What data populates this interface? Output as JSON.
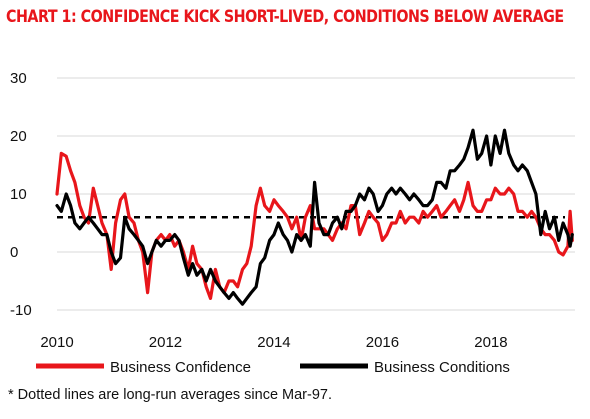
{
  "title": "CHART 1: CONFIDENCE KICK SHORT-LIVED, CONDITIONS BELOW AVERAGE",
  "footnote": "* Dotted lines are long-run averages since Mar-97.",
  "colors": {
    "title": "#e8161b",
    "confidence": "#e8161b",
    "conditions": "#000000",
    "grid": "#d9d9d9"
  },
  "chart_data": {
    "type": "line",
    "title": "CHART 1: CONFIDENCE KICK SHORT-LIVED, CONDITIONS BELOW AVERAGE",
    "xlabel": "",
    "ylabel": "",
    "xlim": [
      2010,
      2019.55
    ],
    "ylim": [
      -10,
      30
    ],
    "x_ticks": [
      "2010",
      "2012",
      "2014",
      "2016",
      "2018"
    ],
    "y_ticks": [
      "30",
      "20",
      "10",
      "0",
      "-10"
    ],
    "grid": true,
    "legend": "bottom",
    "reference_lines": [
      {
        "y": 6,
        "style": "dashed"
      }
    ],
    "series": [
      {
        "name": "Business Confidence",
        "color": "#e8161b",
        "points": [
          [
            2010.0,
            10
          ],
          [
            2010.08,
            17
          ],
          [
            2010.17,
            16.5
          ],
          [
            2010.25,
            14
          ],
          [
            2010.33,
            12
          ],
          [
            2010.42,
            8
          ],
          [
            2010.5,
            6
          ],
          [
            2010.58,
            5
          ],
          [
            2010.67,
            11
          ],
          [
            2010.75,
            8
          ],
          [
            2010.83,
            5
          ],
          [
            2010.92,
            3
          ],
          [
            2011.0,
            -3
          ],
          [
            2011.08,
            5
          ],
          [
            2011.17,
            9
          ],
          [
            2011.25,
            10
          ],
          [
            2011.33,
            6
          ],
          [
            2011.42,
            5
          ],
          [
            2011.5,
            2
          ],
          [
            2011.58,
            0
          ],
          [
            2011.67,
            -7
          ],
          [
            2011.75,
            0
          ],
          [
            2011.83,
            2
          ],
          [
            2011.92,
            3
          ],
          [
            2012.0,
            2
          ],
          [
            2012.08,
            3
          ],
          [
            2012.17,
            1
          ],
          [
            2012.25,
            2
          ],
          [
            2012.33,
            0
          ],
          [
            2012.42,
            -3
          ],
          [
            2012.5,
            1
          ],
          [
            2012.58,
            -2
          ],
          [
            2012.67,
            -3
          ],
          [
            2012.75,
            -6
          ],
          [
            2012.83,
            -8
          ],
          [
            2012.92,
            -3
          ],
          [
            2013.0,
            -6
          ],
          [
            2013.08,
            -7
          ],
          [
            2013.17,
            -5
          ],
          [
            2013.25,
            -5
          ],
          [
            2013.33,
            -6
          ],
          [
            2013.42,
            -3
          ],
          [
            2013.5,
            -2
          ],
          [
            2013.58,
            1
          ],
          [
            2013.67,
            8
          ],
          [
            2013.75,
            11
          ],
          [
            2013.83,
            8
          ],
          [
            2013.92,
            7
          ],
          [
            2014.0,
            9
          ],
          [
            2014.08,
            8
          ],
          [
            2014.17,
            7
          ],
          [
            2014.25,
            6
          ],
          [
            2014.33,
            4
          ],
          [
            2014.42,
            6
          ],
          [
            2014.5,
            2
          ],
          [
            2014.58,
            6
          ],
          [
            2014.67,
            8
          ],
          [
            2014.75,
            4
          ],
          [
            2014.83,
            4
          ],
          [
            2014.92,
            4
          ],
          [
            2015.0,
            3
          ],
          [
            2015.08,
            2
          ],
          [
            2015.17,
            4
          ],
          [
            2015.25,
            5
          ],
          [
            2015.33,
            4
          ],
          [
            2015.42,
            8
          ],
          [
            2015.5,
            8
          ],
          [
            2015.58,
            3
          ],
          [
            2015.67,
            5
          ],
          [
            2015.75,
            7
          ],
          [
            2015.83,
            6
          ],
          [
            2015.92,
            5
          ],
          [
            2016.0,
            2
          ],
          [
            2016.08,
            3
          ],
          [
            2016.17,
            5
          ],
          [
            2016.25,
            5
          ],
          [
            2016.33,
            7
          ],
          [
            2016.42,
            5
          ],
          [
            2016.5,
            6
          ],
          [
            2016.58,
            6
          ],
          [
            2016.67,
            5
          ],
          [
            2016.75,
            7
          ],
          [
            2016.83,
            6
          ],
          [
            2016.92,
            7
          ],
          [
            2017.0,
            8
          ],
          [
            2017.08,
            6
          ],
          [
            2017.17,
            7
          ],
          [
            2017.25,
            8
          ],
          [
            2017.33,
            9
          ],
          [
            2017.42,
            7
          ],
          [
            2017.5,
            9
          ],
          [
            2017.58,
            12
          ],
          [
            2017.67,
            8
          ],
          [
            2017.75,
            7
          ],
          [
            2017.83,
            7
          ],
          [
            2017.92,
            9
          ],
          [
            2018.0,
            9
          ],
          [
            2018.08,
            11
          ],
          [
            2018.17,
            10
          ],
          [
            2018.25,
            10
          ],
          [
            2018.33,
            11
          ],
          [
            2018.42,
            10
          ],
          [
            2018.5,
            7
          ],
          [
            2018.58,
            7
          ],
          [
            2018.67,
            6
          ],
          [
            2018.75,
            7
          ],
          [
            2018.83,
            6
          ],
          [
            2018.92,
            4
          ],
          [
            2019.0,
            3
          ],
          [
            2019.08,
            3
          ],
          [
            2019.17,
            2
          ],
          [
            2019.25,
            0
          ],
          [
            2019.33,
            -0.5
          ],
          [
            2019.42,
            1
          ],
          [
            2019.46,
            7
          ],
          [
            2019.5,
            2
          ]
        ]
      },
      {
        "name": "Business Conditions",
        "color": "#000000",
        "points": [
          [
            2010.0,
            8
          ],
          [
            2010.08,
            7
          ],
          [
            2010.17,
            10
          ],
          [
            2010.25,
            8
          ],
          [
            2010.33,
            5
          ],
          [
            2010.42,
            4
          ],
          [
            2010.5,
            5
          ],
          [
            2010.58,
            6
          ],
          [
            2010.67,
            5
          ],
          [
            2010.75,
            4
          ],
          [
            2010.83,
            3
          ],
          [
            2010.92,
            3
          ],
          [
            2011.0,
            0
          ],
          [
            2011.08,
            -2
          ],
          [
            2011.17,
            -1
          ],
          [
            2011.25,
            6
          ],
          [
            2011.33,
            4
          ],
          [
            2011.42,
            3
          ],
          [
            2011.5,
            2
          ],
          [
            2011.58,
            1
          ],
          [
            2011.67,
            -2
          ],
          [
            2011.75,
            0
          ],
          [
            2011.83,
            2
          ],
          [
            2011.92,
            1
          ],
          [
            2012.0,
            2
          ],
          [
            2012.08,
            2
          ],
          [
            2012.17,
            3
          ],
          [
            2012.25,
            2
          ],
          [
            2012.33,
            -1
          ],
          [
            2012.42,
            -4
          ],
          [
            2012.5,
            -2
          ],
          [
            2012.58,
            -4
          ],
          [
            2012.67,
            -3
          ],
          [
            2012.75,
            -5
          ],
          [
            2012.83,
            -3
          ],
          [
            2012.92,
            -5
          ],
          [
            2013.0,
            -6
          ],
          [
            2013.08,
            -7
          ],
          [
            2013.17,
            -8
          ],
          [
            2013.25,
            -7
          ],
          [
            2013.33,
            -8
          ],
          [
            2013.42,
            -9
          ],
          [
            2013.5,
            -8
          ],
          [
            2013.58,
            -7
          ],
          [
            2013.67,
            -6
          ],
          [
            2013.75,
            -2
          ],
          [
            2013.83,
            -1
          ],
          [
            2013.92,
            2
          ],
          [
            2014.0,
            3
          ],
          [
            2014.08,
            5
          ],
          [
            2014.17,
            3
          ],
          [
            2014.25,
            2
          ],
          [
            2014.33,
            0
          ],
          [
            2014.42,
            3
          ],
          [
            2014.5,
            2
          ],
          [
            2014.58,
            3
          ],
          [
            2014.67,
            1
          ],
          [
            2014.75,
            12
          ],
          [
            2014.83,
            5
          ],
          [
            2014.92,
            3
          ],
          [
            2015.0,
            3
          ],
          [
            2015.08,
            5
          ],
          [
            2015.17,
            6
          ],
          [
            2015.25,
            4
          ],
          [
            2015.33,
            7
          ],
          [
            2015.42,
            7
          ],
          [
            2015.5,
            8
          ],
          [
            2015.58,
            10
          ],
          [
            2015.67,
            9
          ],
          [
            2015.75,
            11
          ],
          [
            2015.83,
            10
          ],
          [
            2015.92,
            7
          ],
          [
            2016.0,
            8
          ],
          [
            2016.08,
            10
          ],
          [
            2016.17,
            11
          ],
          [
            2016.25,
            10
          ],
          [
            2016.33,
            11
          ],
          [
            2016.42,
            10
          ],
          [
            2016.5,
            9
          ],
          [
            2016.58,
            10
          ],
          [
            2016.67,
            9
          ],
          [
            2016.75,
            8
          ],
          [
            2016.83,
            8
          ],
          [
            2016.92,
            9
          ],
          [
            2017.0,
            12
          ],
          [
            2017.08,
            12
          ],
          [
            2017.17,
            11
          ],
          [
            2017.25,
            14
          ],
          [
            2017.33,
            14
          ],
          [
            2017.42,
            15
          ],
          [
            2017.5,
            16
          ],
          [
            2017.58,
            18
          ],
          [
            2017.67,
            21
          ],
          [
            2017.75,
            16
          ],
          [
            2017.83,
            17
          ],
          [
            2017.92,
            20
          ],
          [
            2018.0,
            15
          ],
          [
            2018.08,
            20
          ],
          [
            2018.17,
            17
          ],
          [
            2018.25,
            21
          ],
          [
            2018.33,
            17
          ],
          [
            2018.42,
            15
          ],
          [
            2018.5,
            14
          ],
          [
            2018.58,
            15
          ],
          [
            2018.67,
            14
          ],
          [
            2018.75,
            12
          ],
          [
            2018.83,
            10
          ],
          [
            2018.92,
            3
          ],
          [
            2019.0,
            7
          ],
          [
            2019.08,
            4
          ],
          [
            2019.17,
            6
          ],
          [
            2019.25,
            2
          ],
          [
            2019.33,
            5
          ],
          [
            2019.42,
            3
          ],
          [
            2019.46,
            1
          ],
          [
            2019.5,
            3
          ]
        ]
      }
    ]
  }
}
